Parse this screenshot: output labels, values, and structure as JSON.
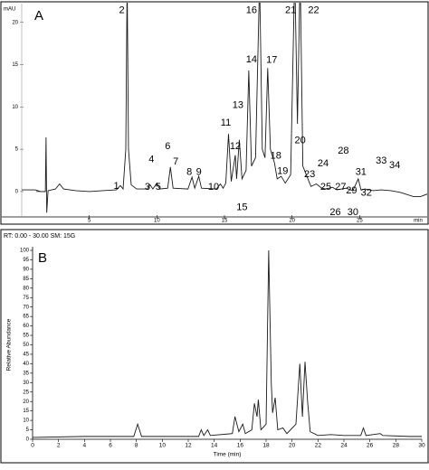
{
  "chart_data": [
    {
      "type": "line",
      "panel_label": "A",
      "y_label": "mAU",
      "x_label": "min",
      "xlim": [
        0,
        30
      ],
      "ylim": [
        -3,
        22
      ],
      "xticks": [
        5,
        10,
        15,
        20,
        25
      ],
      "yticks": [
        0,
        5,
        10,
        15,
        20
      ],
      "series": [
        {
          "color": "#1a1a1a",
          "x": [
            0,
            1.0,
            1.4,
            1.75,
            1.8,
            1.85,
            1.95,
            2.5,
            2.8,
            3.1,
            4,
            5,
            6,
            7,
            7.3,
            7.5,
            7.7,
            7.8,
            7.9,
            8.1,
            8.5,
            9.3,
            9.5,
            9.7,
            10.0,
            10.2,
            10.8,
            11.0,
            11.2,
            12.3,
            12.6,
            12.8,
            13.1,
            13.3,
            14.4,
            14.7,
            14.9,
            15.1,
            15.3,
            15.5,
            15.8,
            15.9,
            16.1,
            16.3,
            16.6,
            16.8,
            17.0,
            17.3,
            17.6,
            17.8,
            18.0,
            18.2,
            18.4,
            18.7,
            18.9,
            19.2,
            19.5,
            19.9,
            20.2,
            20.4,
            20.6,
            20.8,
            21.1,
            21.4,
            21.8,
            22.2,
            22.5,
            23.0,
            23.3,
            24.0,
            24.5,
            24.9,
            25.1,
            25.4,
            26.0,
            26.6,
            27.3,
            28.0,
            29.0,
            29.5,
            30
          ],
          "values": [
            0.2,
            0.2,
            0,
            0,
            6.4,
            -2.5,
            0.1,
            0.3,
            0.9,
            0.3,
            0.1,
            0,
            0.1,
            0.2,
            0.7,
            0.3,
            5,
            25,
            5,
            0.8,
            0.3,
            0.3,
            0.8,
            0.3,
            1.0,
            0.3,
            0.4,
            2.9,
            0.4,
            0.3,
            1.7,
            0.4,
            1.8,
            0.4,
            0.3,
            0.9,
            0.4,
            1,
            6.8,
            1.2,
            4.3,
            1.5,
            6.1,
            1.5,
            2.5,
            14.3,
            3,
            4,
            25,
            5,
            4,
            14.6,
            5,
            3.4,
            1.5,
            1.8,
            1.0,
            2,
            26,
            8,
            26,
            3,
            1.8,
            0.6,
            0.9,
            0.4,
            0.3,
            0.5,
            0.2,
            0.4,
            0.1,
            1.5,
            0.2,
            0.3,
            0.1,
            0.2,
            0.1,
            -0.1,
            -0.6,
            -0.6,
            -0.3
          ]
        }
      ],
      "annotations": [
        {
          "text": "1",
          "x": 7.0,
          "y": 0.6
        },
        {
          "text": "2",
          "x": 7.4,
          "y": 21.4
        },
        {
          "text": "3",
          "x": 9.3,
          "y": 0.5
        },
        {
          "text": "4",
          "x": 9.6,
          "y": 3.8
        },
        {
          "text": "5",
          "x": 10.1,
          "y": 0.5
        },
        {
          "text": "6",
          "x": 10.8,
          "y": 5.3
        },
        {
          "text": "7",
          "x": 11.4,
          "y": 3.5
        },
        {
          "text": "8",
          "x": 12.4,
          "y": 2.3
        },
        {
          "text": "9",
          "x": 13.1,
          "y": 2.3
        },
        {
          "text": "10",
          "x": 14.2,
          "y": 0.5
        },
        {
          "text": "11",
          "x": 15.1,
          "y": 8.1
        },
        {
          "text": "12",
          "x": 15.8,
          "y": 5.3
        },
        {
          "text": "13",
          "x": 16.0,
          "y": 10.2
        },
        {
          "text": "14",
          "x": 17.0,
          "y": 15.6
        },
        {
          "text": "15",
          "x": 16.3,
          "y": -1.9
        },
        {
          "text": "16",
          "x": 17.0,
          "y": 21.4
        },
        {
          "text": "17",
          "x": 18.5,
          "y": 15.5
        },
        {
          "text": "18",
          "x": 18.8,
          "y": 4.2
        },
        {
          "text": "19",
          "x": 19.3,
          "y": 2.4
        },
        {
          "text": "20",
          "x": 20.6,
          "y": 6
        },
        {
          "text": "21",
          "x": 19.9,
          "y": 21.4
        },
        {
          "text": "22",
          "x": 21.6,
          "y": 21.4
        },
        {
          "text": "23",
          "x": 21.3,
          "y": 2.0
        },
        {
          "text": "24",
          "x": 22.3,
          "y": 3.3
        },
        {
          "text": "25",
          "x": 22.5,
          "y": 0.5
        },
        {
          "text": "26",
          "x": 23.2,
          "y": -2.5
        },
        {
          "text": "27",
          "x": 23.6,
          "y": 0.5
        },
        {
          "text": "28",
          "x": 23.8,
          "y": 4.8
        },
        {
          "text": "29",
          "x": 24.4,
          "y": 0.1
        },
        {
          "text": "30",
          "x": 24.5,
          "y": -2.5
        },
        {
          "text": "31",
          "x": 25.1,
          "y": 2.3
        },
        {
          "text": "32",
          "x": 25.5,
          "y": -0.2
        },
        {
          "text": "33",
          "x": 26.6,
          "y": 3.6
        },
        {
          "text": "34",
          "x": 27.6,
          "y": 3.1
        }
      ]
    },
    {
      "type": "line",
      "panel_label": "B",
      "title": "RT: 0.00 - 30.00 SM: 15G",
      "y_label": "Relative Abundance",
      "x_label": "Time (min)",
      "xlim": [
        0,
        30
      ],
      "ylim": [
        0,
        100
      ],
      "xticks": [
        0,
        2,
        4,
        6,
        8,
        10,
        12,
        14,
        16,
        18,
        20,
        22,
        24,
        26,
        28,
        30
      ],
      "yticks": [
        0,
        5,
        10,
        15,
        20,
        25,
        30,
        35,
        40,
        45,
        50,
        55,
        60,
        65,
        70,
        75,
        80,
        85,
        90,
        95,
        100
      ],
      "series": [
        {
          "color": "#1a1a1a",
          "x": [
            0,
            4,
            7.8,
            8.1,
            8.4,
            12.8,
            13.0,
            13.2,
            13.5,
            13.7,
            15.4,
            15.6,
            15.9,
            16.2,
            16.4,
            16.9,
            17.1,
            17.3,
            17.4,
            17.6,
            18.0,
            18.2,
            18.4,
            18.5,
            18.7,
            18.9,
            19.3,
            19.6,
            20.3,
            20.6,
            20.8,
            21.0,
            21.2,
            21.4,
            22,
            23,
            24,
            25.3,
            25.5,
            25.7,
            26.8,
            27,
            29,
            30
          ],
          "values": [
            1,
            1.5,
            1.5,
            8,
            1.5,
            1.5,
            5,
            2,
            5,
            2,
            3,
            12,
            4,
            8,
            3,
            5,
            19,
            12,
            21,
            5,
            8,
            100,
            30,
            14,
            22,
            5,
            6,
            3,
            8,
            40,
            12,
            41,
            20,
            4,
            2,
            2.5,
            2,
            2,
            6,
            2,
            3,
            2,
            1.5,
            1.5
          ]
        }
      ]
    }
  ]
}
